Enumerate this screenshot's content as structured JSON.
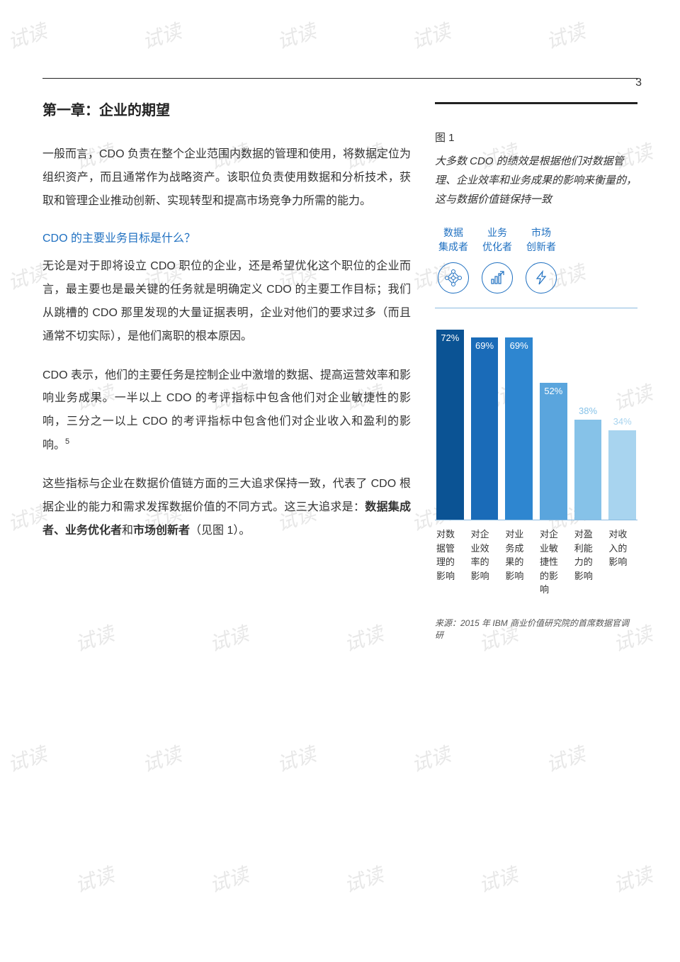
{
  "page_number": "3",
  "watermark_text": "试读",
  "chapter_title": "第一章：企业的期望",
  "para1": "一般而言，CDO 负责在整个企业范围内数据的管理和使用，将数据定位为组织资产，而且通常作为战略资产。该职位负责使用数据和分析技术，获取和管理企业推动创新、实现转型和提高市场竞争力所需的能力。",
  "subhead": "CDO 的主要业务目标是什么？",
  "para2": "无论是对于即将设立 CDO 职位的企业，还是希望优化这个职位的企业而言，最主要也是最关键的任务就是明确定义 CDO 的主要工作目标；我们从跳槽的 CDO 那里发现的大量证据表明，企业对他们的要求过多（而且通常不切实际），是他们离职的根本原因。",
  "para3_a": "CDO 表示，他们的主要任务是控制企业中激增的数据、提高运营效率和影响业务成果。一半以上 CDO 的考评指标中包含他们对企业敏捷性的影响，三分之一以上 CDO 的考评指标中包含他们对企业收入和盈利的影响。",
  "para3_sup": "5",
  "para4_a": "这些指标与企业在数据价值链方面的三大追求保持一致，代表了 CDO 根据企业的能力和需求发挥数据价值的不同方式。这三大追求是：",
  "para4_bold": "数据集成者、业务优化者",
  "para4_mid": "和",
  "para4_bold2": "市场创新者",
  "para4_end": "（见图 1）。",
  "figure": {
    "label": "图 1",
    "caption": "大多数 CDO 的绩效是根据他们对数据管理、企业效率和业务成果的影响来衡量的，这与数据价值链保持一致",
    "legend": [
      {
        "l1": "数据",
        "l2": "集成者"
      },
      {
        "l1": "业务",
        "l2": "优化者"
      },
      {
        "l1": "市场",
        "l2": "创新者"
      }
    ],
    "chart": {
      "type": "bar",
      "max": 80,
      "background_color": "#ffffff",
      "gridline_color": "#8bbbe0",
      "bars": [
        {
          "value": 72,
          "label": "72%",
          "color": "#0b5394",
          "label_pos": "on"
        },
        {
          "value": 69,
          "label": "69%",
          "color": "#1a6bb8",
          "label_pos": "on"
        },
        {
          "value": 69,
          "label": "69%",
          "color": "#2e86d0",
          "label_pos": "on"
        },
        {
          "value": 52,
          "label": "52%",
          "color": "#5aa5dd",
          "label_pos": "on"
        },
        {
          "value": 38,
          "label": "38%",
          "color": "#86c2e8",
          "label_pos": "above"
        },
        {
          "value": 34,
          "label": "34%",
          "color": "#a8d4ef",
          "label_pos": "above"
        }
      ],
      "xlabels": [
        "对数据管理的影响",
        "对企业效率的影响",
        "对业务成果的影响",
        "对企业敏捷性的影响",
        "对盈利能力的影响",
        "对收入的影响"
      ]
    },
    "source": "来源：2015 年 IBM 商业价值研究院的首席数据官调研"
  },
  "icon_color": "#1f70c1"
}
